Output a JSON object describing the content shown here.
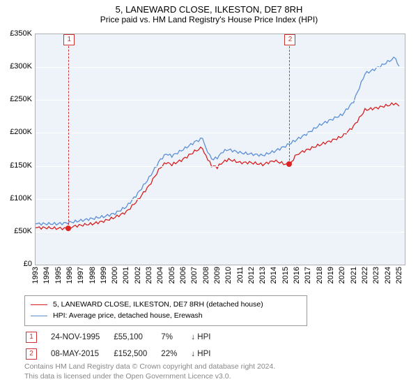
{
  "title": "5, LANEWARD CLOSE, ILKESTON, DE7 8RH",
  "subtitle": "Price paid vs. HM Land Registry's House Price Index (HPI)",
  "chart": {
    "type": "line",
    "background_color": "#eef3fa",
    "grid_color": "#ffffff",
    "xlim": [
      1993,
      2025.5
    ],
    "x_ticks": [
      1993,
      1994,
      1995,
      1996,
      1997,
      1998,
      1999,
      2000,
      2001,
      2002,
      2003,
      2004,
      2005,
      2006,
      2007,
      2008,
      2009,
      2010,
      2011,
      2012,
      2013,
      2014,
      2015,
      2016,
      2017,
      2018,
      2019,
      2020,
      2021,
      2022,
      2023,
      2024,
      2025
    ],
    "x_tick_labels": [
      "1993",
      "1994",
      "1995",
      "1996",
      "1997",
      "1998",
      "1999",
      "2000",
      "2001",
      "2002",
      "2003",
      "2004",
      "2005",
      "2006",
      "2007",
      "2008",
      "2009",
      "2010",
      "2011",
      "2012",
      "2013",
      "2014",
      "2015",
      "2016",
      "2017",
      "2018",
      "2019",
      "2020",
      "2021",
      "2022",
      "2023",
      "2024",
      "2025"
    ],
    "ylim": [
      0,
      350000
    ],
    "y_ticks": [
      0,
      50000,
      100000,
      150000,
      200000,
      250000,
      300000,
      350000
    ],
    "y_tick_labels": [
      "£0",
      "£50K",
      "£100K",
      "£150K",
      "£200K",
      "£250K",
      "£300K",
      "£350K"
    ],
    "series": [
      {
        "name": "price_paid",
        "label": "5, LANEWARD CLOSE, ILKESTON, DE7 8RH (detached house)",
        "color": "#d91e1e",
        "line_width": 1.3,
        "x": [
          1993,
          1994,
          1995,
          1995.9,
          1996,
          1997,
          1998,
          1999,
          2000,
          2001,
          2002,
          2003,
          2004,
          2004.5,
          2005,
          2006,
          2007,
          2007.7,
          2008,
          2008.5,
          2009,
          2009.5,
          2010,
          2011,
          2012,
          2013,
          2014,
          2015,
          2015.4,
          2016,
          2017,
          2018,
          2019,
          2020,
          2021,
          2022,
          2023,
          2024,
          2024.7,
          2025
        ],
        "y": [
          56000,
          56000,
          55000,
          55100,
          57000,
          60000,
          62000,
          66000,
          72000,
          80000,
          98000,
          120000,
          148000,
          155000,
          152000,
          160000,
          172000,
          178000,
          165000,
          150000,
          148000,
          156000,
          160000,
          155000,
          155000,
          152000,
          158000,
          152500,
          152500,
          168000,
          175000,
          182000,
          188000,
          195000,
          210000,
          235000,
          238000,
          242000,
          245000,
          240000
        ]
      },
      {
        "name": "hpi",
        "label": "HPI: Average price, detached house, Erewash",
        "color": "#5a8fd6",
        "line_width": 1.3,
        "x": [
          1993,
          1994,
          1995,
          1996,
          1997,
          1998,
          1999,
          2000,
          2001,
          2002,
          2003,
          2004,
          2004.5,
          2005,
          2006,
          2007,
          2007.7,
          2008,
          2008.5,
          2009,
          2009.5,
          2010,
          2011,
          2012,
          2013,
          2014,
          2015,
          2016,
          2017,
          2018,
          2019,
          2020,
          2021,
          2022,
          2023,
          2024,
          2024.7,
          2025
        ],
        "y": [
          62000,
          62000,
          62000,
          64000,
          67000,
          70000,
          73000,
          78000,
          88000,
          108000,
          132000,
          160000,
          168000,
          165000,
          175000,
          186000,
          192000,
          178000,
          160000,
          162000,
          172000,
          175000,
          170000,
          168000,
          166000,
          172000,
          180000,
          190000,
          200000,
          212000,
          220000,
          228000,
          248000,
          290000,
          298000,
          308000,
          315000,
          300000
        ]
      }
    ],
    "sale_markers": [
      {
        "n": "1",
        "x": 1995.9,
        "y": 55100
      },
      {
        "n": "2",
        "x": 2015.35,
        "y": 152500
      }
    ]
  },
  "legend": {
    "items": [
      {
        "color": "#d91e1e",
        "label": "5, LANEWARD CLOSE, ILKESTON, DE7 8RH (detached house)"
      },
      {
        "color": "#5a8fd6",
        "label": "HPI: Average price, detached house, Erewash"
      }
    ]
  },
  "sales": [
    {
      "n": "1",
      "date": "24-NOV-1995",
      "price": "£55,100",
      "pct": "7%",
      "dir": "↓ HPI"
    },
    {
      "n": "2",
      "date": "08-MAY-2015",
      "price": "£152,500",
      "pct": "22%",
      "dir": "↓ HPI"
    }
  ],
  "footer_line1": "Contains HM Land Registry data © Crown copyright and database right 2024.",
  "footer_line2": "This data is licensed under the Open Government Licence v3.0."
}
